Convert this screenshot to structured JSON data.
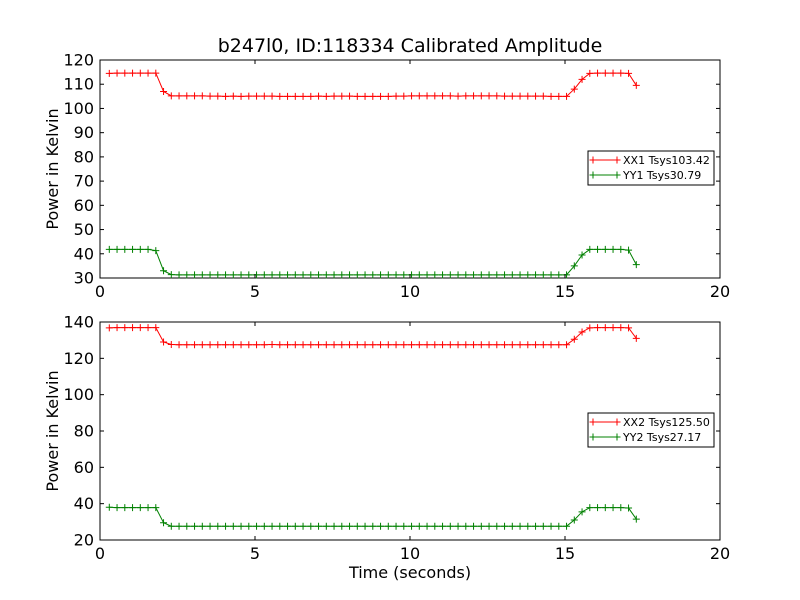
{
  "title": "b247l0, ID:118334 Calibrated Amplitude",
  "xlabel": "Time (seconds)",
  "colors": {
    "XX": "#ff0000",
    "YY": "#008000"
  },
  "chart_data": [
    {
      "type": "line",
      "ylabel": "Power in Kelvin",
      "xlim": [
        0,
        20
      ],
      "ylim": [
        30,
        120
      ],
      "xticks": [
        0,
        5,
        10,
        15,
        20
      ],
      "yticks": [
        30,
        40,
        50,
        60,
        70,
        80,
        90,
        100,
        110,
        120
      ],
      "legend_position": "center-right",
      "grid": false,
      "x_start": 0.3,
      "x_step": 0.25,
      "series": [
        {
          "name": "XX1 Tsys103.42",
          "color": "#ff0000",
          "marker": "+",
          "values": [
            114.5,
            114.6,
            114.6,
            114.6,
            114.6,
            114.6,
            114.6,
            107.0,
            105.2,
            105.2,
            105.2,
            105.2,
            105.2,
            105.1,
            105.1,
            105.0,
            105.1,
            105.0,
            105.1,
            105.1,
            105.1,
            105.1,
            105.0,
            105.0,
            105.0,
            105.0,
            105.0,
            105.1,
            105.0,
            105.1,
            105.1,
            105.1,
            105.0,
            105.0,
            105.0,
            105.0,
            105.0,
            105.1,
            105.1,
            105.2,
            105.2,
            105.2,
            105.2,
            105.2,
            105.2,
            105.1,
            105.2,
            105.2,
            105.2,
            105.2,
            105.2,
            105.1,
            105.1,
            105.1,
            105.1,
            105.1,
            105.1,
            105.0,
            105.0,
            105.0,
            108.0,
            112.0,
            114.5,
            114.6,
            114.6,
            114.6,
            114.6,
            114.5,
            109.5
          ]
        },
        {
          "name": "YY1 Tsys30.79",
          "color": "#008000",
          "marker": "+",
          "values": [
            41.8,
            41.8,
            41.8,
            41.8,
            41.8,
            41.8,
            41.3,
            33.0,
            31.4,
            31.3,
            31.3,
            31.3,
            31.3,
            31.3,
            31.3,
            31.3,
            31.3,
            31.3,
            31.3,
            31.3,
            31.3,
            31.3,
            31.3,
            31.3,
            31.3,
            31.3,
            31.3,
            31.3,
            31.3,
            31.3,
            31.3,
            31.3,
            31.3,
            31.3,
            31.3,
            31.3,
            31.3,
            31.3,
            31.3,
            31.3,
            31.3,
            31.3,
            31.3,
            31.3,
            31.3,
            31.3,
            31.3,
            31.3,
            31.3,
            31.3,
            31.3,
            31.3,
            31.3,
            31.3,
            31.3,
            31.3,
            31.3,
            31.3,
            31.3,
            31.3,
            35.0,
            39.5,
            41.8,
            41.8,
            41.8,
            41.8,
            41.8,
            41.5,
            35.5
          ]
        }
      ]
    },
    {
      "type": "line",
      "ylabel": "Power in Kelvin",
      "xlim": [
        0,
        20
      ],
      "ylim": [
        20,
        140
      ],
      "xticks": [
        0,
        5,
        10,
        15,
        20
      ],
      "yticks": [
        20,
        40,
        60,
        80,
        100,
        120,
        140
      ],
      "legend_position": "center-right",
      "grid": false,
      "x_start": 0.3,
      "x_step": 0.25,
      "series": [
        {
          "name": "XX2 Tsys125.50",
          "color": "#ff0000",
          "marker": "+",
          "values": [
            136.8,
            136.9,
            136.9,
            136.9,
            136.9,
            136.9,
            136.9,
            129.0,
            127.6,
            127.5,
            127.5,
            127.5,
            127.5,
            127.5,
            127.5,
            127.5,
            127.5,
            127.5,
            127.5,
            127.5,
            127.5,
            127.6,
            127.5,
            127.5,
            127.5,
            127.5,
            127.5,
            127.5,
            127.5,
            127.5,
            127.5,
            127.5,
            127.5,
            127.5,
            127.5,
            127.5,
            127.5,
            127.5,
            127.5,
            127.5,
            127.5,
            127.5,
            127.5,
            127.5,
            127.5,
            127.5,
            127.5,
            127.5,
            127.5,
            127.5,
            127.5,
            127.5,
            127.5,
            127.5,
            127.5,
            127.5,
            127.5,
            127.5,
            127.5,
            127.5,
            130.5,
            134.5,
            136.8,
            136.9,
            136.9,
            136.9,
            136.9,
            136.8,
            131.0
          ]
        },
        {
          "name": "YY2 Tsys27.17",
          "color": "#008000",
          "marker": "+",
          "values": [
            38.0,
            37.8,
            37.8,
            37.8,
            37.8,
            37.8,
            37.8,
            29.5,
            27.6,
            27.6,
            27.6,
            27.6,
            27.6,
            27.6,
            27.6,
            27.6,
            27.6,
            27.6,
            27.6,
            27.6,
            27.6,
            27.6,
            27.6,
            27.6,
            27.6,
            27.6,
            27.6,
            27.6,
            27.6,
            27.6,
            27.6,
            27.6,
            27.6,
            27.6,
            27.6,
            27.6,
            27.6,
            27.6,
            27.6,
            27.6,
            27.6,
            27.6,
            27.6,
            27.6,
            27.6,
            27.6,
            27.6,
            27.6,
            27.6,
            27.6,
            27.6,
            27.6,
            27.6,
            27.6,
            27.6,
            27.6,
            27.6,
            27.6,
            27.6,
            27.6,
            31.0,
            35.5,
            37.8,
            37.8,
            37.8,
            37.8,
            37.8,
            37.6,
            31.5
          ]
        }
      ]
    }
  ]
}
